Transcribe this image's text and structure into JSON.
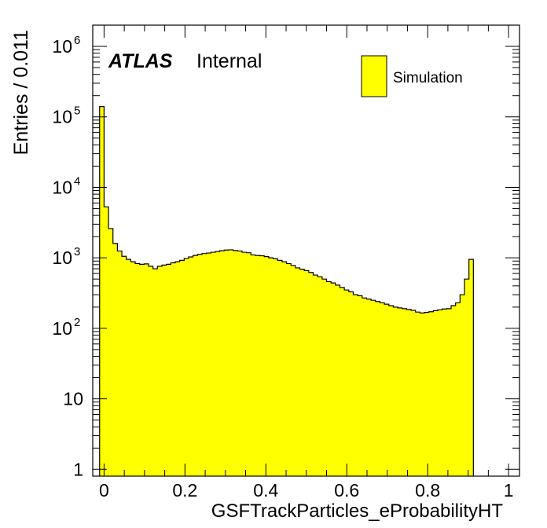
{
  "chart_data": {
    "type": "bar",
    "title": "",
    "xlabel": "GSFTrackParticles_eProbabilityHT",
    "ylabel": "Entries / 0.011",
    "x_range": [
      -0.028,
      1.027
    ],
    "y_range_log": [
      0.8,
      2000000
    ],
    "y_scale": "log",
    "bin_start": -0.011,
    "bin_width": 0.011,
    "x_ticks": [
      {
        "value": 0,
        "label": "0"
      },
      {
        "value": 0.2,
        "label": "0.2"
      },
      {
        "value": 0.4,
        "label": "0.4"
      },
      {
        "value": 0.6,
        "label": "0.6"
      },
      {
        "value": 0.8,
        "label": "0.8"
      },
      {
        "value": 1,
        "label": "1"
      }
    ],
    "y_ticks": [
      {
        "value": 1,
        "base": "1",
        "exp": ""
      },
      {
        "value": 10,
        "base": "10",
        "exp": ""
      },
      {
        "value": 100,
        "base": "10",
        "exp": "2"
      },
      {
        "value": 1000,
        "base": "10",
        "exp": "3"
      },
      {
        "value": 10000,
        "base": "10",
        "exp": "4"
      },
      {
        "value": 100000,
        "base": "10",
        "exp": "5"
      },
      {
        "value": 1000000,
        "base": "10",
        "exp": "6"
      }
    ],
    "series": [
      {
        "name": "Simulation",
        "color": "#ffff00",
        "edge_color": "#000000",
        "values": [
          140000,
          5300,
          2600,
          1600,
          1250,
          1050,
          950,
          880,
          830,
          810,
          820,
          760,
          700,
          760,
          790,
          810,
          850,
          880,
          920,
          980,
          1030,
          1080,
          1120,
          1150,
          1170,
          1200,
          1230,
          1260,
          1290,
          1300,
          1270,
          1250,
          1200,
          1180,
          1100,
          1080,
          1070,
          1040,
          1000,
          970,
          920,
          880,
          830,
          780,
          720,
          690,
          660,
          620,
          570,
          540,
          500,
          460,
          440,
          410,
          380,
          350,
          330,
          300,
          290,
          270,
          260,
          250,
          240,
          230,
          220,
          210,
          200,
          195,
          190,
          185,
          180,
          170,
          165,
          168,
          172,
          178,
          183,
          188,
          190,
          210,
          230,
          300,
          500,
          950
        ]
      }
    ],
    "legend": {
      "position": "top-right",
      "entries": [
        "Simulation"
      ]
    },
    "annotation": {
      "atlas": "ATLAS",
      "status": "Internal"
    },
    "grid": false
  }
}
